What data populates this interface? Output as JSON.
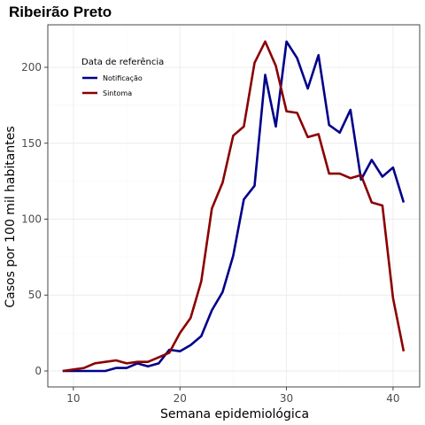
{
  "chart_data": {
    "type": "line",
    "title": "Ribeirão Preto",
    "xlabel": "Semana epidemiológica",
    "ylabel": "Casos por 100 mil habitantes",
    "xlim": [
      7.6,
      42.5
    ],
    "ylim": [
      -10.5,
      228
    ],
    "x_ticks": [
      10,
      20,
      30,
      40
    ],
    "y_ticks": [
      0,
      50,
      100,
      150,
      200
    ],
    "grid": true,
    "legend": {
      "title": "Data de referência",
      "position": "top-left"
    },
    "series": [
      {
        "name": "Notificação",
        "color": "#00008B",
        "x": [
          9,
          10,
          11,
          12,
          13,
          14,
          15,
          16,
          17,
          18,
          19,
          20,
          21,
          22,
          23,
          24,
          25,
          26,
          27,
          28,
          29,
          30,
          31,
          32,
          33,
          34,
          35,
          36,
          37,
          38,
          39,
          40,
          41
        ],
        "y": [
          0,
          0,
          0,
          0,
          0,
          2,
          2,
          5,
          3,
          5,
          14,
          13,
          17,
          23,
          40,
          52,
          76,
          113,
          122,
          195,
          161,
          217,
          206,
          186,
          208,
          162,
          157,
          172,
          126,
          139,
          128,
          134,
          111
        ]
      },
      {
        "name": "Sintoma",
        "color": "#8B0000",
        "x": [
          9,
          10,
          11,
          12,
          13,
          14,
          15,
          16,
          17,
          18,
          19,
          20,
          21,
          22,
          23,
          24,
          25,
          26,
          27,
          28,
          29,
          30,
          31,
          32,
          33,
          34,
          35,
          36,
          37,
          38,
          39,
          40,
          41
        ],
        "y": [
          0,
          1,
          2,
          5,
          6,
          7,
          5,
          6,
          6,
          9,
          12,
          25,
          35,
          59,
          107,
          124,
          155,
          161,
          203,
          217,
          201,
          171,
          170,
          154,
          156,
          130,
          130,
          127,
          129,
          111,
          109,
          48,
          13
        ]
      }
    ]
  }
}
